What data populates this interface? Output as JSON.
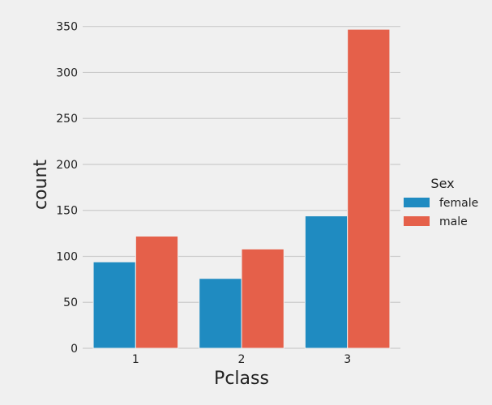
{
  "chart_data": {
    "type": "bar",
    "xlabel": "Pclass",
    "ylabel": "count",
    "categories": [
      "1",
      "2",
      "3"
    ],
    "series": [
      {
        "name": "female",
        "values": [
          94,
          76,
          144
        ],
        "color": "#1f8bc1"
      },
      {
        "name": "male",
        "values": [
          122,
          108,
          347
        ],
        "color": "#e5604a"
      }
    ],
    "ylim": [
      0,
      370
    ],
    "yticks": [
      0,
      50,
      100,
      150,
      200,
      250,
      300,
      350
    ],
    "grid": "horizontal",
    "legend": {
      "title": "Sex",
      "placement": "right"
    }
  }
}
